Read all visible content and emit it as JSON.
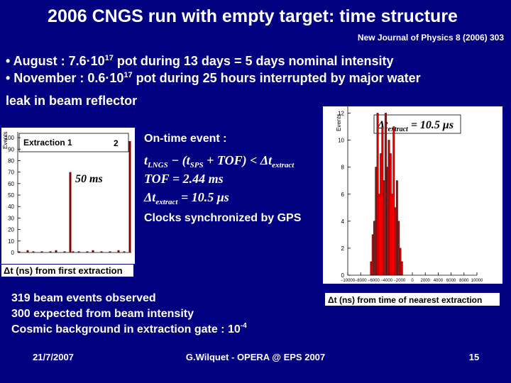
{
  "title": "2006 CNGS run with empty target: time structure",
  "reference": "New Journal of Physics 8 (2006) 303",
  "bullets": [
    [
      "• August : 7.6·10",
      "17",
      " pot during 13 days = 5 days nominal intensity"
    ],
    [
      "• November : 0.6·10",
      "17",
      " pot during 25 hours interrupted by major water"
    ],
    [
      "leak in beam reflector"
    ]
  ],
  "on_time": {
    "heading": "On-time event :",
    "line1": [
      "t",
      "LNGS",
      " − (",
      "t",
      "SPS",
      " + TOF) < Δ",
      "t",
      "extract"
    ],
    "line2": "TOF = 2.44 ms",
    "line3": [
      "Δ",
      "t",
      "extract",
      " = 10.5 μs"
    ],
    "line4": "Clocks synchronized by GPS"
  },
  "summary": [
    "319 beam events observed",
    "300 expected from beam intensity",
    [
      "Cosmic background in extraction gate : 10",
      "-4"
    ]
  ],
  "footer": {
    "date": "21/7/2007",
    "author": "G.Wilquet - OPERA @ EPS 2007",
    "page": "15"
  },
  "chart_data": [
    {
      "type": "bar",
      "y_label": "Events",
      "x_label": "Δt (ns) from first extraction",
      "annotations": [
        "Extraction 1",
        "2",
        "50 ms"
      ],
      "categories": [
        null,
        null,
        null,
        null,
        null,
        null,
        null,
        null,
        null,
        null,
        null,
        null,
        null,
        null,
        null,
        null,
        null,
        null,
        null,
        null,
        null,
        null,
        null,
        null,
        null,
        null,
        null,
        null,
        null,
        null,
        null,
        null,
        null,
        null,
        null,
        null,
        null,
        null,
        null,
        null
      ],
      "values": [
        1,
        0,
        0,
        2,
        0,
        1,
        0,
        0,
        1,
        0,
        0,
        1,
        0,
        2,
        0,
        0,
        1,
        0,
        70,
        1,
        0,
        1,
        0,
        0,
        1,
        0,
        2,
        0,
        0,
        1,
        0,
        0,
        1,
        0,
        0,
        2,
        0,
        1,
        0,
        97
      ],
      "color": "#8b0000",
      "ylim": [
        0,
        105
      ],
      "yticks": [
        0,
        10,
        20,
        30,
        40,
        50,
        60,
        70,
        80,
        90,
        100
      ]
    },
    {
      "type": "histogram",
      "y_label": "Events",
      "x_label": "Δt (ns) from time of nearest extraction",
      "annotation": [
        "Δ",
        "t",
        "extract",
        " = 10.5 μs"
      ],
      "bins": [
        -6500,
        -6250,
        -6000,
        -5750,
        -5500,
        -5250,
        -5000,
        -4750,
        -4500,
        -4250,
        -4000,
        -3750,
        -3500,
        -3250,
        -3000,
        -2750,
        -2500,
        -2250,
        -2000,
        -1750,
        -1500
      ],
      "values": [
        1,
        3,
        4,
        8,
        12,
        6,
        9,
        11,
        7,
        12,
        8,
        10,
        9,
        6,
        11,
        5,
        7,
        4,
        2,
        1
      ],
      "color": "#ff0000",
      "xlim": [
        -10000,
        10000
      ],
      "xticks": [
        {
          "value": -10000,
          "label": "−10000"
        },
        {
          "value": -8000,
          "label": "−8000"
        },
        {
          "value": -6000,
          "label": "−6000"
        },
        {
          "value": -4000,
          "label": "−4000"
        },
        {
          "value": -2000,
          "label": "−2000"
        },
        0,
        2000,
        4000,
        6000,
        8000,
        10000
      ],
      "ylim": [
        0,
        12.5
      ],
      "yticks": [
        0,
        2,
        4,
        6,
        8,
        10,
        12
      ]
    }
  ]
}
